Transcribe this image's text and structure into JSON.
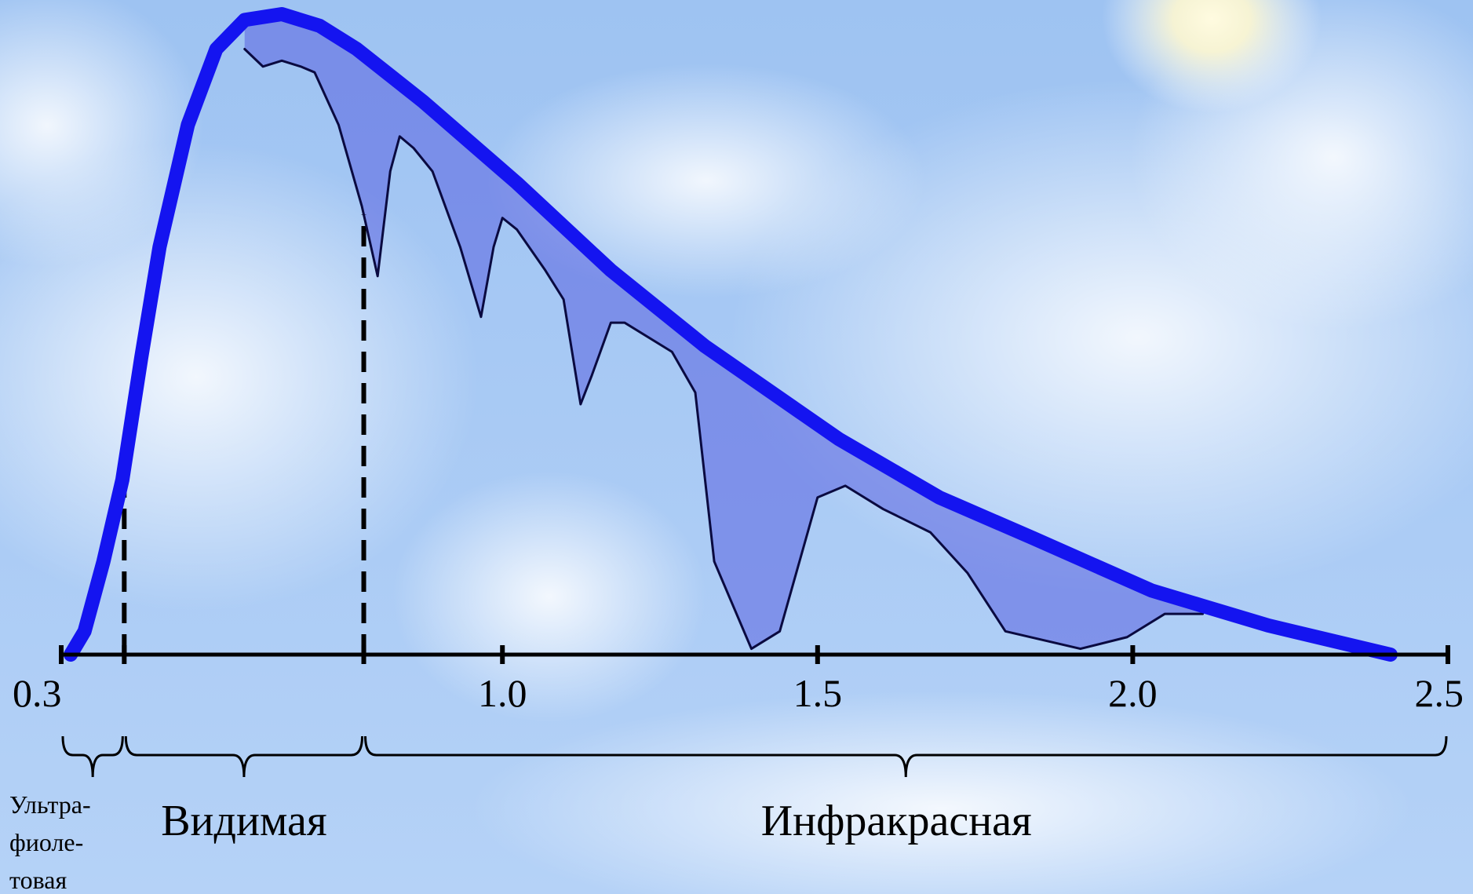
{
  "chart_data": {
    "type": "line",
    "xlim": [
      0.3,
      2.5
    ],
    "ylim": [
      0,
      1.1
    ],
    "xticks": [
      0.3,
      {
        "value": 1,
        "label": "1.0"
      },
      1.5,
      {
        "value": 2,
        "label": "2.0"
      },
      2.5
    ],
    "series": [
      {
        "color": "#1414f0",
        "x": [
          0.315,
          0.337,
          0.367,
          0.397,
          0.427,
          0.456,
          0.501,
          0.546,
          0.591,
          0.65,
          0.71,
          0.769,
          0.874,
          1.023,
          1.172,
          1.321,
          1.534,
          1.693,
          1.842,
          2.03,
          2.215,
          2.409
        ],
        "values": [
          0,
          0.04,
          0.16,
          0.3,
          0.51,
          0.7,
          0.91,
          1.04,
          1.09,
          1.1,
          1.08,
          1.04,
          0.95,
          0.81,
          0.66,
          0.53,
          0.37,
          0.27,
          0.2,
          0.11,
          0.05,
          0
        ]
      },
      {
        "color": "#0a0a40",
        "x": [
          0.591,
          0.62,
          0.65,
          0.68,
          0.702,
          0.74,
          0.777,
          0.802,
          0.822,
          0.837,
          0.859,
          0.889,
          0.933,
          0.966,
          0.986,
          1.0,
          1.023,
          1.068,
          1.097,
          1.124,
          1.142,
          1.172,
          1.194,
          1.269,
          1.306,
          1.336,
          1.395,
          1.44,
          1.5,
          1.544,
          1.604,
          1.679,
          1.738,
          1.798,
          1.917,
          1.991,
          2.051,
          2.111
        ],
        "values": [
          1.04,
          1.01,
          1.02,
          1.01,
          1.0,
          0.91,
          0.77,
          0.65,
          0.83,
          0.89,
          0.87,
          0.83,
          0.7,
          0.58,
          0.7,
          0.75,
          0.73,
          0.66,
          0.61,
          0.43,
          0.48,
          0.57,
          0.57,
          0.52,
          0.45,
          0.16,
          0.01,
          0.04,
          0.27,
          0.29,
          0.25,
          0.21,
          0.14,
          0.04,
          0.01,
          0.03,
          0.07,
          0.07
        ]
      }
    ],
    "regions": [
      {
        "label": [
          "Ультра-",
          "фиоле-",
          "товая"
        ],
        "from": 0.3,
        "to": 0.4
      },
      {
        "label": "Видимая",
        "from": 0.4,
        "to": 0.78
      },
      {
        "label": "Инфракрасная",
        "from": 0.78,
        "to": 2.5
      }
    ]
  }
}
